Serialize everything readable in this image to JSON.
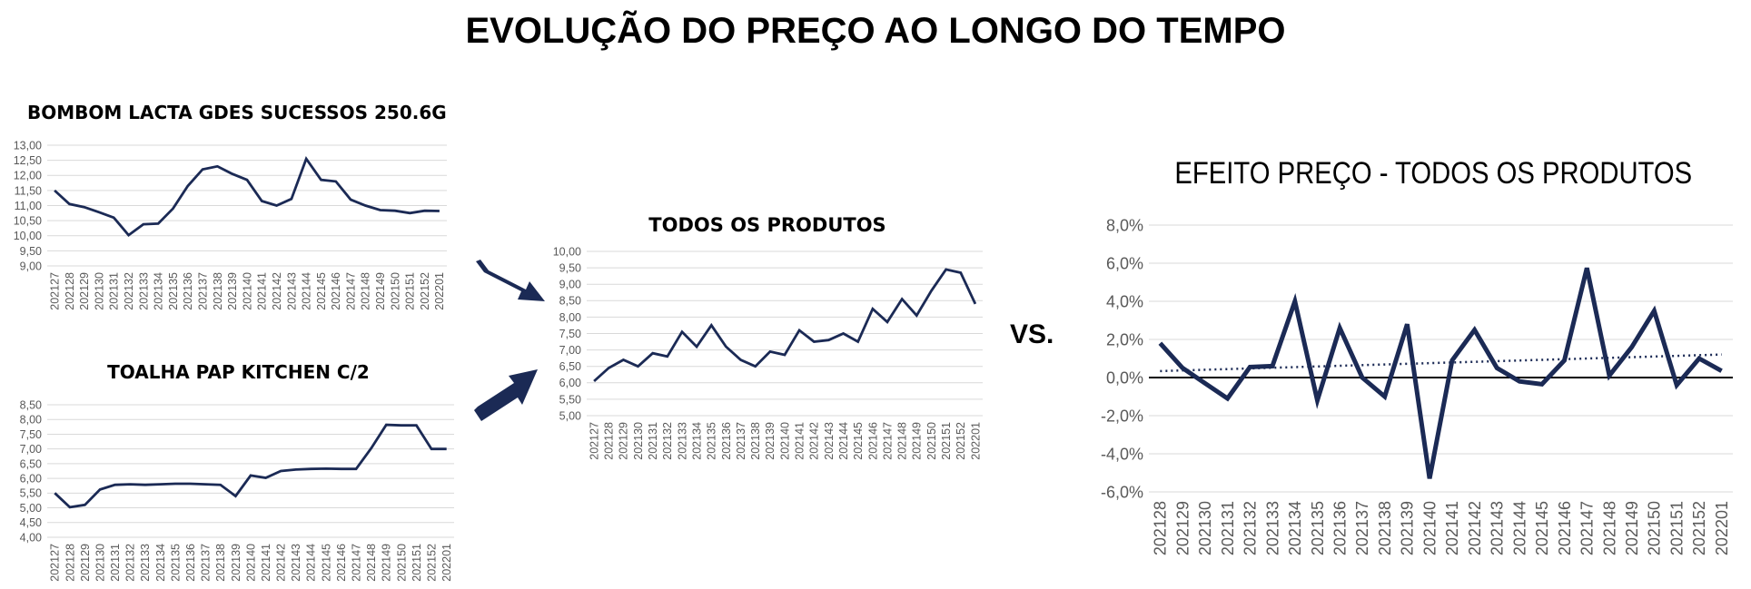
{
  "page": {
    "title": "EVOLUÇÃO DO PREÇO AO LONGO DO TEMPO",
    "vs_label": "VS."
  },
  "colors": {
    "line": "#1B2A55",
    "grid": "#D9D9D9",
    "axis_text": "#595959",
    "arrow": "#1B2A55",
    "trend": "#1B2A55",
    "zero_line": "#000000"
  },
  "chart_data": [
    {
      "type": "line",
      "title": "BOMBOM LACTA GDES SUCESSOS 250.6G",
      "ylim": [
        9,
        13
      ],
      "yticks": [
        "9,00",
        "9,50",
        "10,00",
        "10,50",
        "11,00",
        "11,50",
        "12,00",
        "12,50",
        "13,00"
      ],
      "grid": true,
      "categories": [
        "202127",
        "202128",
        "202129",
        "202130",
        "202131",
        "202132",
        "202133",
        "202134",
        "202135",
        "202136",
        "202137",
        "202138",
        "202139",
        "202140",
        "202141",
        "202142",
        "202143",
        "202144",
        "202145",
        "202146",
        "202147",
        "202148",
        "202149",
        "202150",
        "202151",
        "202152",
        "202201"
      ],
      "series": [
        {
          "values": [
            11.5,
            11.05,
            10.95,
            10.78,
            10.6,
            10.02,
            10.38,
            10.4,
            10.9,
            11.65,
            12.2,
            12.3,
            12.05,
            11.85,
            11.15,
            11.0,
            11.22,
            12.55,
            11.85,
            11.8,
            11.2,
            11.0,
            10.85,
            10.83,
            10.75,
            10.83,
            10.82
          ]
        }
      ]
    },
    {
      "type": "line",
      "title": "TOALHA PAP KITCHEN C/2",
      "ylim": [
        4,
        8.5
      ],
      "yticks": [
        "4,00",
        "4,50",
        "5,00",
        "5,50",
        "6,00",
        "6,50",
        "7,00",
        "7,50",
        "8,00",
        "8,50"
      ],
      "grid": true,
      "categories": [
        "202127",
        "202128",
        "202129",
        "202130",
        "202131",
        "202132",
        "202133",
        "202134",
        "202135",
        "202136",
        "202137",
        "202138",
        "202139",
        "202140",
        "202141",
        "202142",
        "202143",
        "202144",
        "202145",
        "202146",
        "202147",
        "202148",
        "202149",
        "202150",
        "202151",
        "202152",
        "202201"
      ],
      "series": [
        {
          "values": [
            5.5,
            5.02,
            5.1,
            5.62,
            5.78,
            5.8,
            5.78,
            5.8,
            5.82,
            5.82,
            5.8,
            5.78,
            5.4,
            6.1,
            6.02,
            6.25,
            6.3,
            6.32,
            6.33,
            6.32,
            6.32,
            7.02,
            7.82,
            7.8,
            7.8,
            7.0,
            7.0
          ]
        }
      ]
    },
    {
      "type": "line",
      "title": "TODOS OS PRODUTOS",
      "ylim": [
        5,
        10
      ],
      "yticks": [
        "5,00",
        "5,50",
        "6,00",
        "6,50",
        "7,00",
        "7,50",
        "8,00",
        "8,50",
        "9,00",
        "9,50",
        "10,00"
      ],
      "grid": true,
      "categories": [
        "202127",
        "202128",
        "202129",
        "202130",
        "202131",
        "202132",
        "202133",
        "202134",
        "202135",
        "202136",
        "202137",
        "202138",
        "202139",
        "202140",
        "202141",
        "202142",
        "202143",
        "202144",
        "202145",
        "202146",
        "202147",
        "202148",
        "202149",
        "202150",
        "202151",
        "202152",
        "202201"
      ],
      "series": [
        {
          "values": [
            6.05,
            6.45,
            6.7,
            6.5,
            6.9,
            6.8,
            7.55,
            7.1,
            7.75,
            7.1,
            6.7,
            6.5,
            6.95,
            6.85,
            7.6,
            7.25,
            7.3,
            7.5,
            7.25,
            8.25,
            7.85,
            8.55,
            8.05,
            8.8,
            9.45,
            9.35,
            8.4
          ]
        }
      ]
    },
    {
      "type": "line",
      "title": "EFEITO PREÇO - TODOS OS PRODUTOS",
      "ylim": [
        -6,
        8
      ],
      "yticks": [
        "-6,0%",
        "-4,0%",
        "-2,0%",
        "0,0%",
        "2,0%",
        "4,0%",
        "6,0%",
        "8,0%"
      ],
      "grid": true,
      "linear_trendline": true,
      "categories": [
        "202128",
        "202129",
        "202130",
        "202131",
        "202132",
        "202133",
        "202134",
        "202135",
        "202136",
        "202137",
        "202138",
        "202139",
        "202140",
        "202141",
        "202142",
        "202143",
        "202144",
        "202145",
        "202146",
        "202147",
        "202148",
        "202149",
        "202150",
        "202151",
        "202152",
        "202201"
      ],
      "series": [
        {
          "values": [
            1.8,
            0.5,
            -0.3,
            -1.1,
            0.55,
            0.6,
            4.0,
            -1.2,
            2.6,
            0.0,
            -1.0,
            2.8,
            -5.3,
            0.9,
            2.5,
            0.5,
            -0.2,
            -0.35,
            0.9,
            5.75,
            0.1,
            1.6,
            3.5,
            -0.4,
            1.0,
            0.35
          ]
        }
      ]
    }
  ]
}
